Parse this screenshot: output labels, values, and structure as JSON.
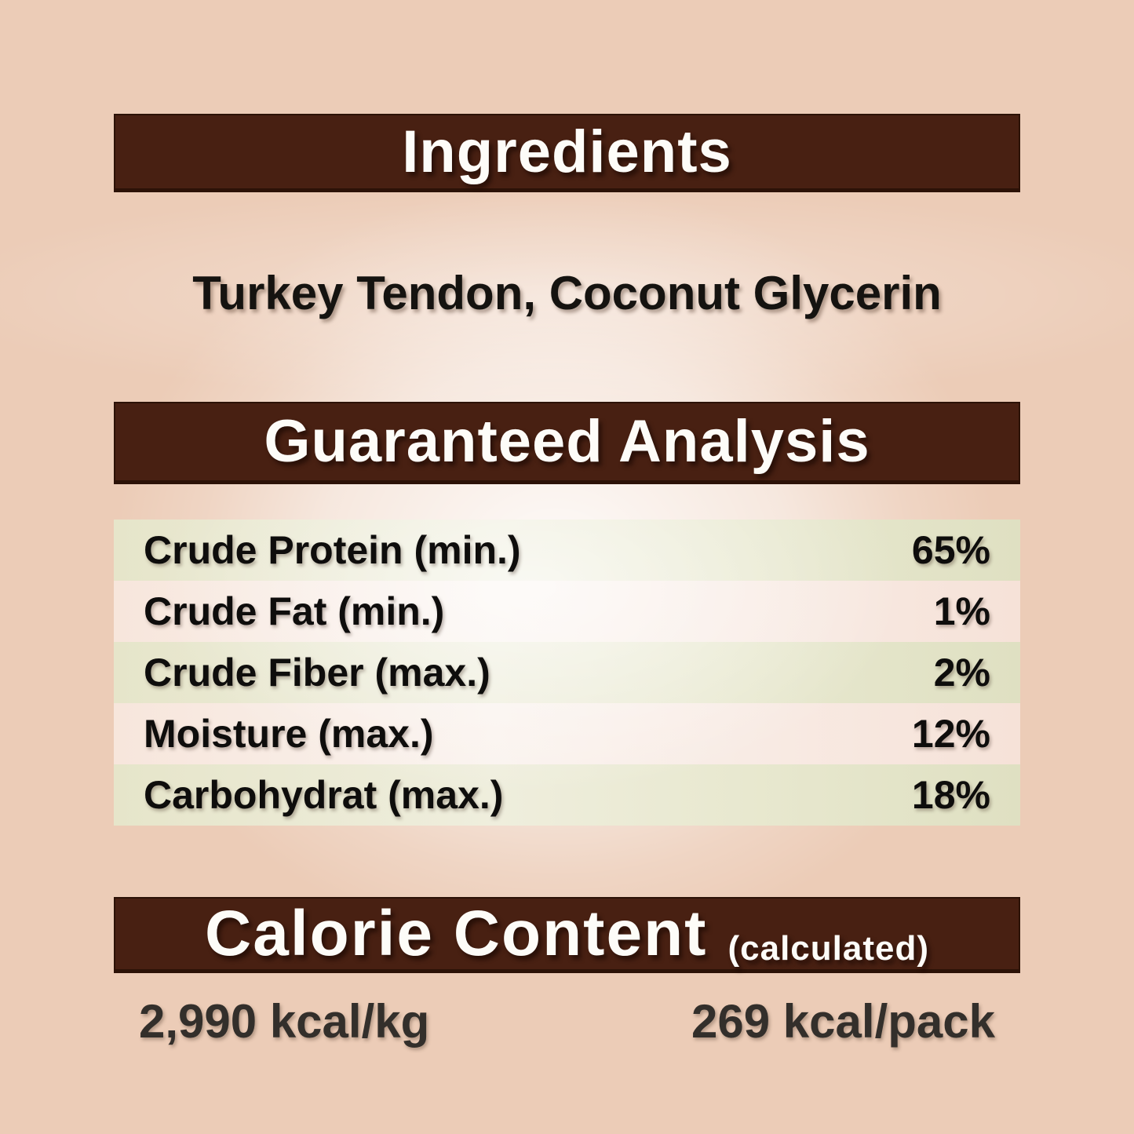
{
  "palette": {
    "background_pink": "#ecccb7",
    "banner_brown": "#482012",
    "banner_text": "#fdfcf8",
    "stripe_green": "#e2e2c6",
    "row_pink": "#f7e3da",
    "body_text": "#151310",
    "calorie_text": "#332f2b"
  },
  "sections": {
    "ingredients": {
      "title": "Ingredients",
      "content": "Turkey Tendon, Coconut Glycerin"
    },
    "analysis": {
      "title": "Guaranteed Analysis",
      "rows": [
        {
          "label": "Crude Protein (min.)",
          "value": "65%"
        },
        {
          "label": "Crude Fat (min.)",
          "value": "1%"
        },
        {
          "label": "Crude Fiber (max.)",
          "value": "2%"
        },
        {
          "label": "Moisture (max.)",
          "value": "12%"
        },
        {
          "label": "Carbohydrat (max.)",
          "value": "18%"
        }
      ]
    },
    "calories": {
      "title": "Calorie Content",
      "subtitle": "(calculated)",
      "per_kg": "2,990 kcal/kg",
      "per_pack": "269 kcal/pack"
    }
  }
}
